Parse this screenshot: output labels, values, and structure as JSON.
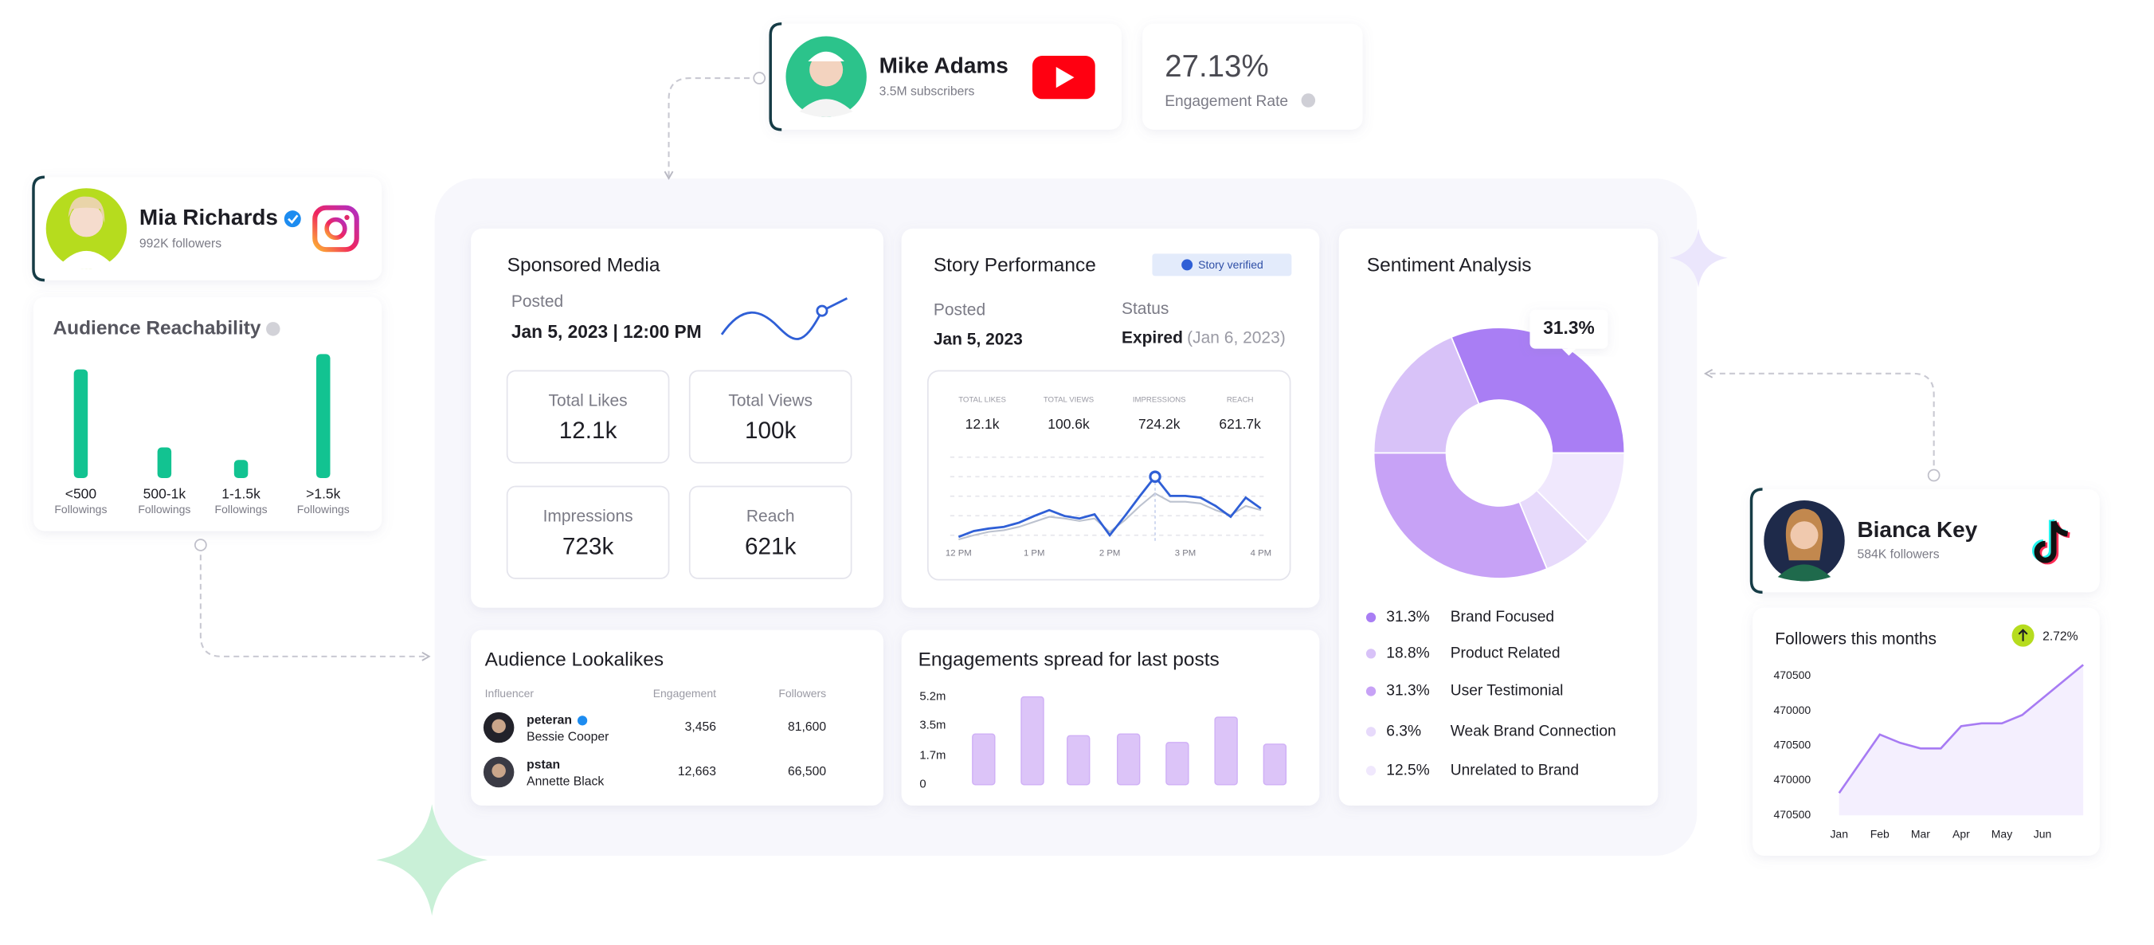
{
  "youtube_card": {
    "name": "Mike Adams",
    "subscribers": "3.5M subscribers"
  },
  "engagement_card": {
    "rate": "27.13%",
    "label": "Engagement Rate"
  },
  "instagram_card": {
    "name": "Mia Richards",
    "followers": "992K followers"
  },
  "audience_reachability": {
    "title": "Audience Reachability",
    "chart": {
      "type": "bar",
      "categories": [
        "<500",
        "500-1k",
        "1-1.5k",
        ">1.5k"
      ],
      "category_caption": "Followings",
      "values": [
        78,
        22,
        13,
        89
      ],
      "color": "#12c391",
      "ylim": [
        0,
        100
      ]
    }
  },
  "sponsored_media": {
    "title": "Sponsored Media",
    "posted_label": "Posted",
    "posted_value": "Jan 5, 2023 | 12:00 PM",
    "stats": [
      {
        "label": "Total Likes",
        "value": "12.1k"
      },
      {
        "label": "Total Views",
        "value": "100k"
      },
      {
        "label": "Impressions",
        "value": "723k"
      },
      {
        "label": "Reach",
        "value": "621k"
      }
    ]
  },
  "story_performance": {
    "title": "Story Performance",
    "badge": "Story verified",
    "posted_label": "Posted",
    "posted_value": "Jan 5, 2023",
    "status_label": "Status",
    "status_value": "Expired",
    "status_date": "(Jan 6, 2023)",
    "metrics": [
      {
        "label": "TOTAL LIKES",
        "value": "12.1k"
      },
      {
        "label": "TOTAL VIEWS",
        "value": "100.6k"
      },
      {
        "label": "IMPRESSIONS",
        "value": "724.2k"
      },
      {
        "label": "REACH",
        "value": "621.7k"
      }
    ],
    "chart": {
      "type": "line",
      "categories": [
        "12 PM",
        null,
        null,
        null,
        null,
        "1 PM",
        null,
        null,
        null,
        null,
        "2 PM",
        null,
        null,
        null,
        null,
        "3 PM",
        null,
        null,
        null,
        null,
        "4 PM"
      ],
      "series": [
        {
          "color": "#2f5fd6",
          "values": [
            8,
            15,
            18,
            20,
            25,
            33,
            40,
            33,
            30,
            35,
            10,
            33,
            57,
            80,
            57,
            57,
            55,
            45,
            32,
            55,
            42
          ]
        },
        {
          "color": "#bcc2cf",
          "values": [
            5,
            10,
            14,
            16,
            20,
            26,
            32,
            30,
            27,
            30,
            14,
            28,
            45,
            60,
            50,
            50,
            48,
            40,
            34,
            45,
            40
          ]
        }
      ],
      "ylim": [
        0,
        100
      ],
      "marker_index": 13,
      "grid": true
    }
  },
  "sentiment_analysis": {
    "title": "Sentiment Analysis",
    "chart": {
      "type": "pie",
      "categories": [
        "Brand Focused",
        "Product Related",
        "User Testimonial",
        "Weak Brand Connection",
        "Unrelated to Brand"
      ],
      "values": [
        31.3,
        18.8,
        31.3,
        6.3,
        12.5
      ],
      "value_labels": [
        "31.3%",
        "18.8%",
        "31.3%",
        "6.3%",
        "12.5%"
      ],
      "colors": [
        "#a97ef4",
        "#d8c2f8",
        "#c7a2f6",
        "#e7dafb",
        "#f0e8fd"
      ],
      "callout_index": 0
    }
  },
  "audience_lookalikes": {
    "title": "Audience Lookalikes",
    "columns": [
      "Influencer",
      "Engagement",
      "Followers"
    ],
    "rows": [
      [
        "peteran",
        "Bessie Cooper",
        "3,456",
        "81,600"
      ],
      [
        "pstan",
        "Annette Black",
        "12,663",
        "66,500"
      ]
    ]
  },
  "engagements_spread": {
    "title": "Engagements spread for last posts",
    "chart": {
      "type": "bar",
      "categories": [
        null,
        null,
        null,
        null,
        null,
        null,
        null
      ],
      "values": [
        3.0,
        5.2,
        2.9,
        3.0,
        2.5,
        4.0,
        2.4
      ],
      "ylim": [
        0,
        5.2
      ],
      "yticks": [
        0,
        {
          "value": 1.7,
          "label": "1.7m"
        },
        {
          "value": 3.5,
          "label": "3.5m"
        },
        {
          "value": 5.2,
          "label": "5.2m"
        }
      ],
      "color": "#dcc4f8"
    }
  },
  "bianca_card": {
    "name": "Bianca Key",
    "followers": "584K followers"
  },
  "followers_chart": {
    "title": "Followers this months",
    "change": "2.72%",
    "chart": {
      "type": "line",
      "categories": [
        "Jan",
        null,
        "Feb",
        null,
        "Mar",
        null,
        "Apr",
        null,
        "May",
        null,
        "Jun",
        null,
        null
      ],
      "y_labels": [
        "470500",
        "470000",
        "470500",
        "470000",
        "470500"
      ],
      "values": [
        16,
        37,
        58,
        52,
        48,
        48,
        64,
        66,
        66,
        72,
        84,
        96,
        108
      ],
      "ylim": [
        0,
        110
      ],
      "color": "#a77bf3"
    }
  }
}
